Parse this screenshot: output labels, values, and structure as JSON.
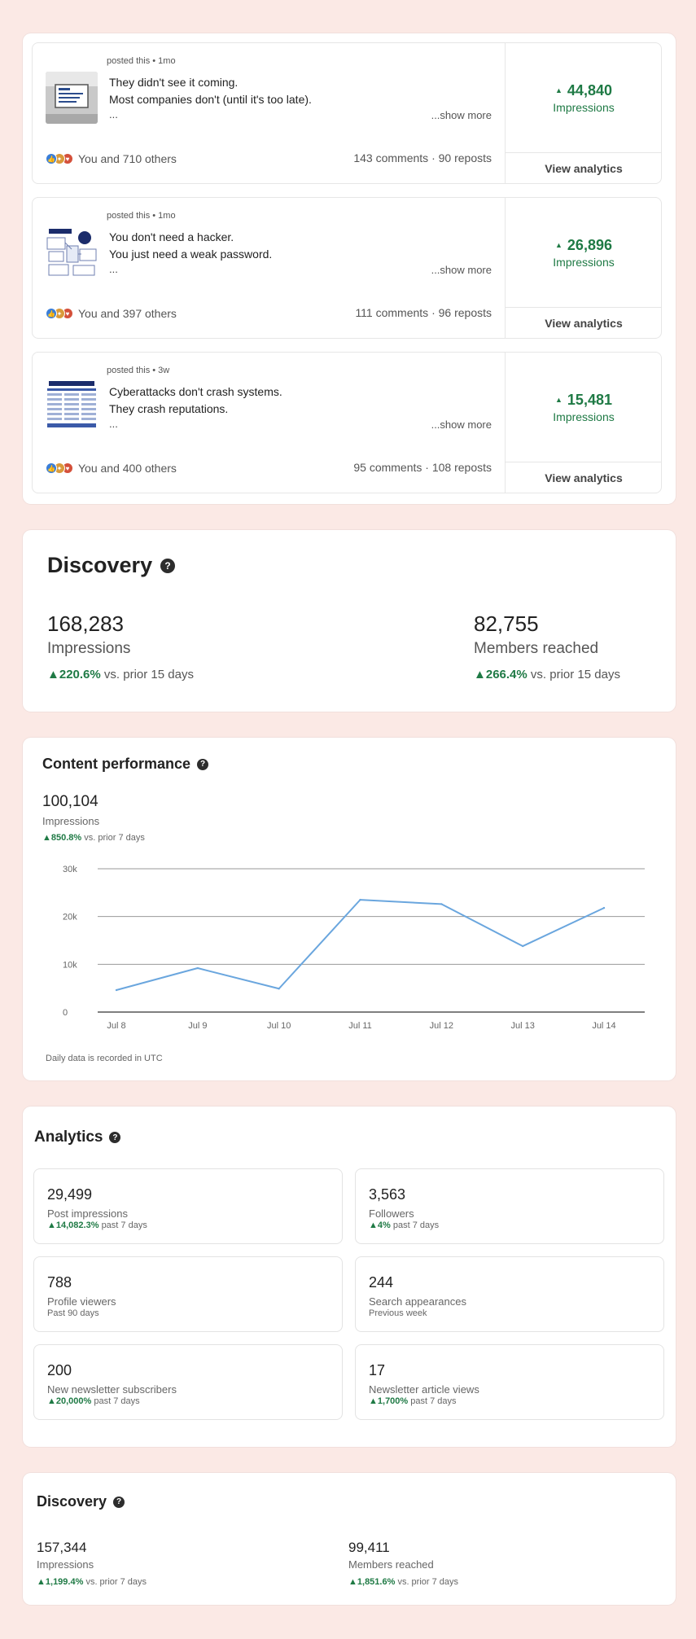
{
  "posts": [
    {
      "meta": "posted this • 1mo",
      "line1": "They didn't see it coming.",
      "line2": "Most companies don't (until it's too late).",
      "ellipsis": "...",
      "show_more": "...show more",
      "reactions": "You and 710 others",
      "counts": "143 comments · 90 reposts",
      "impressions": "44,840",
      "impressions_label": "Impressions",
      "view_analytics": "View analytics",
      "thumb_icon": "presentation-screen-icon"
    },
    {
      "meta": "posted this • 1mo",
      "line1": "You don't need a hacker.",
      "line2": "You just need a weak password.",
      "ellipsis": "...",
      "show_more": "...show more",
      "reactions": "You and 397 others",
      "counts": "111 comments · 96 reposts",
      "impressions": "26,896",
      "impressions_label": "Impressions",
      "view_analytics": "View analytics",
      "thumb_icon": "infographic-icon"
    },
    {
      "meta": "posted this • 3w",
      "line1": "Cyberattacks don't crash systems.",
      "line2": "They crash reputations.",
      "ellipsis": "...",
      "show_more": "...show more",
      "reactions": "You and 400 others",
      "counts": "95 comments · 108 reposts",
      "impressions": "15,481",
      "impressions_label": "Impressions",
      "view_analytics": "View analytics",
      "thumb_icon": "document-table-icon"
    }
  ],
  "discovery_main": {
    "title": "Discovery",
    "impressions": {
      "value": "168,283",
      "label": "Impressions",
      "change": "220.6%",
      "change_suffix": "vs. prior 15 days"
    },
    "members": {
      "value": "82,755",
      "label": "Members reached",
      "change": "266.4%",
      "change_suffix": "vs. prior 15 days"
    }
  },
  "content_performance": {
    "title": "Content performance",
    "value": "100,104",
    "label": "Impressions",
    "change": "850.8%",
    "change_suffix": "vs. prior 7 days",
    "footnote": "Daily data is recorded in UTC"
  },
  "chart_data": {
    "type": "line",
    "title": "",
    "xlabel": "",
    "ylabel": "",
    "categories": [
      "Jul 8",
      "Jul 9",
      "Jul 10",
      "Jul 11",
      "Jul 12",
      "Jul 13",
      "Jul 14"
    ],
    "series": [
      {
        "values": [
          4600,
          9200,
          4900,
          23500,
          22600,
          13800,
          21800
        ],
        "color": "#6aa6de"
      }
    ],
    "yticks": [
      0,
      10000,
      20000,
      30000
    ],
    "yticklabels": [
      "0",
      "10k",
      "20k",
      "30k"
    ],
    "ylim": [
      0,
      30000
    ],
    "grid": true
  },
  "analytics": {
    "title": "Analytics",
    "tiles": [
      {
        "value": "29,499",
        "label": "Post impressions",
        "change": "14,082.3%",
        "suffix": "past 7 days"
      },
      {
        "value": "3,563",
        "label": "Followers",
        "change": "4%",
        "suffix": "past 7 days"
      },
      {
        "value": "788",
        "label": "Profile viewers",
        "change": "",
        "suffix": "Past 90 days"
      },
      {
        "value": "244",
        "label": "Search appearances",
        "change": "",
        "suffix": "Previous week"
      },
      {
        "value": "200",
        "label": "New newsletter subscribers",
        "change": "20,000%",
        "suffix": "past 7 days"
      },
      {
        "value": "17",
        "label": "Newsletter article views",
        "change": "1,700%",
        "suffix": "past 7 days"
      }
    ]
  },
  "discovery_small": {
    "title": "Discovery",
    "impressions": {
      "value": "157,344",
      "label": "Impressions",
      "change": "1,199.4%",
      "change_suffix": "vs. prior 7 days"
    },
    "members": {
      "value": "99,411",
      "label": "Members reached",
      "change": "1,851.6%",
      "change_suffix": "vs. prior 7 days"
    }
  },
  "colors": {
    "background": "#fbe9e5",
    "positive": "#1f7a45",
    "line": "#6aa6de"
  }
}
